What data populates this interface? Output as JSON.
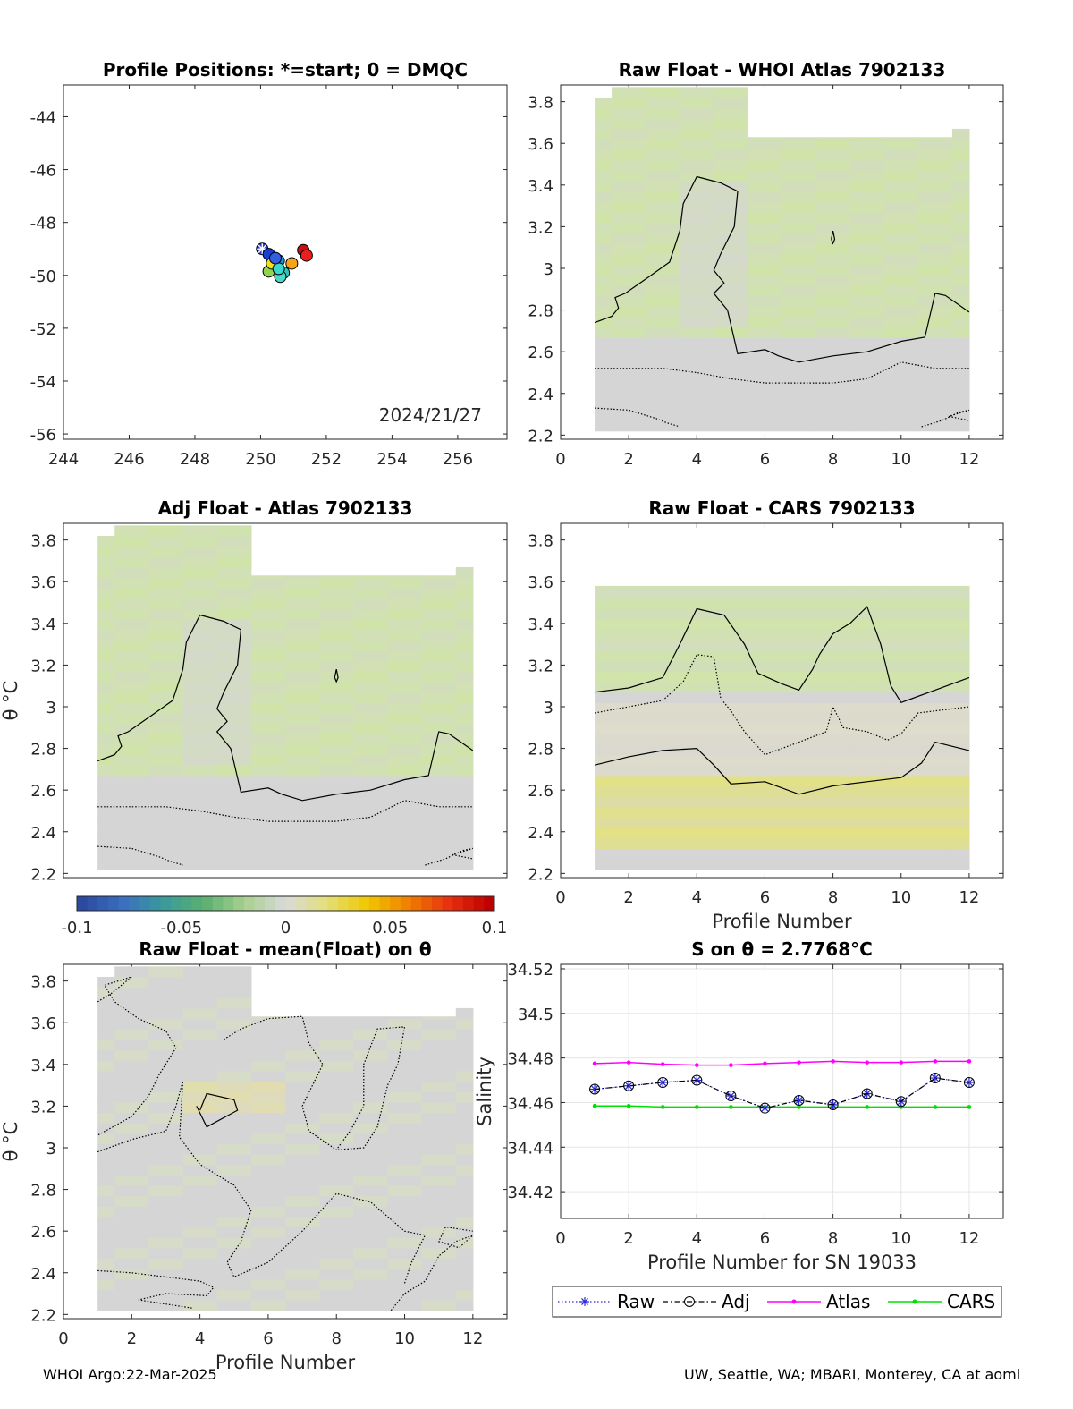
{
  "figure": {
    "footer_left": "WHOI Argo:22-Mar-2025",
    "footer_right": "UW, Seattle, WA; MBARI, Monterey, CA at aoml"
  },
  "colors": {
    "neutral": "#d5d5d5",
    "green": "#cfe6a6",
    "yellow": "#e3e27e",
    "raw_line": "#2b2bd6",
    "adj_line": "#000000",
    "atlas_line": "#ff00ff",
    "cars_line": "#00e000"
  },
  "chart_data": [
    {
      "id": "positions",
      "type": "scatter",
      "title": "Profile Positions: *=start; 0 = DMQC",
      "xlim": [
        244,
        257.5
      ],
      "ylim": [
        -56.2,
        -42.8
      ],
      "xticks": [
        244,
        246,
        248,
        250,
        252,
        254,
        256
      ],
      "yticks": [
        -44,
        -46,
        -48,
        -50,
        -52,
        -54,
        -56
      ],
      "annotation": "2024/21/27",
      "points": [
        {
          "x": 250.05,
          "y": -49.0,
          "color": "#2a3fd0",
          "start": true
        },
        {
          "x": 250.25,
          "y": -49.2,
          "color": "#1540d8"
        },
        {
          "x": 250.55,
          "y": -49.45,
          "color": "#1f9bd8"
        },
        {
          "x": 250.25,
          "y": -49.85,
          "color": "#8fd650"
        },
        {
          "x": 250.35,
          "y": -49.55,
          "color": "#f0e020"
        },
        {
          "x": 250.7,
          "y": -49.9,
          "color": "#28c8b8"
        },
        {
          "x": 250.6,
          "y": -50.05,
          "color": "#4ad8c8"
        },
        {
          "x": 250.55,
          "y": -49.75,
          "color": "#38d8d0"
        },
        {
          "x": 250.95,
          "y": -49.55,
          "color": "#f8a418"
        },
        {
          "x": 251.3,
          "y": -49.05,
          "color": "#c81010"
        },
        {
          "x": 251.4,
          "y": -49.25,
          "color": "#e82020"
        },
        {
          "x": 250.45,
          "y": -49.35,
          "color": "#3060e0"
        }
      ]
    },
    {
      "id": "raw-atlas",
      "type": "heatmap",
      "title": "Raw Float - WHOI Atlas  7902133",
      "xlim": [
        0,
        13
      ],
      "ylim": [
        2.18,
        3.88
      ],
      "xticks": [
        0,
        2,
        4,
        6,
        8,
        10,
        12
      ],
      "yticks": [
        2.2,
        2.4,
        2.6,
        2.8,
        3,
        3.2,
        3.4,
        3.6,
        3.8
      ]
    },
    {
      "id": "adj-atlas",
      "type": "heatmap",
      "title": "Adj Float - Atlas  7902133",
      "ylabel": "θ °C",
      "xlim": [
        0,
        13
      ],
      "ylim": [
        2.18,
        3.88
      ],
      "yticks": [
        2.2,
        2.4,
        2.6,
        2.8,
        3,
        3.2,
        3.4,
        3.6,
        3.8
      ],
      "colorbar": {
        "min": -0.1,
        "max": 0.1,
        "ticks": [
          "-0.1",
          "-0.05",
          "0",
          "0.05",
          "0.1"
        ]
      }
    },
    {
      "id": "raw-cars",
      "type": "heatmap",
      "title": "Raw Float - CARS  7902133",
      "xlabel": "Profile Number",
      "xlim": [
        0,
        13
      ],
      "ylim": [
        2.18,
        3.88
      ],
      "xticks": [
        0,
        2,
        4,
        6,
        8,
        10,
        12
      ],
      "yticks": [
        2.2,
        2.4,
        2.6,
        2.8,
        3,
        3.2,
        3.4,
        3.6,
        3.8
      ]
    },
    {
      "id": "raw-mean",
      "type": "heatmap",
      "title": "Raw Float - mean(Float) on θ",
      "xlabel": "Profile Number",
      "ylabel": "θ °C",
      "xlim": [
        0,
        13
      ],
      "ylim": [
        2.18,
        3.88
      ],
      "xticks": [
        0,
        2,
        4,
        6,
        8,
        10,
        12
      ],
      "yticks": [
        2.2,
        2.4,
        2.6,
        2.8,
        3,
        3.2,
        3.4,
        3.6,
        3.8
      ]
    },
    {
      "id": "salinity",
      "type": "line",
      "title": "S on θ = 2.7768°C",
      "xlabel": "Profile Number for SN 19033",
      "ylabel": "Salinity",
      "xlim": [
        0,
        13
      ],
      "ylim": [
        34.408,
        34.522
      ],
      "xticks": [
        0,
        2,
        4,
        6,
        8,
        10,
        12
      ],
      "yticks": [
        "34.42",
        "34.44",
        "34.46",
        "34.48",
        "34.5",
        "34.52"
      ],
      "grid": true,
      "legend": "bottom",
      "x": [
        1,
        2,
        3,
        4,
        5,
        6,
        7,
        8,
        9,
        10,
        11,
        12
      ],
      "series": [
        {
          "name": "Raw",
          "values": [
            34.466,
            34.4675,
            34.469,
            34.47,
            34.463,
            34.4575,
            34.461,
            34.459,
            34.464,
            34.4605,
            34.471,
            34.469
          ]
        },
        {
          "name": "Adj",
          "values": [
            34.466,
            34.4675,
            34.469,
            34.47,
            34.463,
            34.4575,
            34.461,
            34.459,
            34.464,
            34.4605,
            34.471,
            34.469
          ]
        },
        {
          "name": "Atlas",
          "values": [
            34.4775,
            34.478,
            34.4772,
            34.4768,
            34.4768,
            34.4775,
            34.478,
            34.4785,
            34.478,
            34.478,
            34.4785,
            34.4785
          ]
        },
        {
          "name": "CARS",
          "values": [
            34.4585,
            34.4585,
            34.458,
            34.458,
            34.458,
            34.458,
            34.458,
            34.458,
            34.458,
            34.458,
            34.458,
            34.458
          ]
        }
      ]
    }
  ]
}
